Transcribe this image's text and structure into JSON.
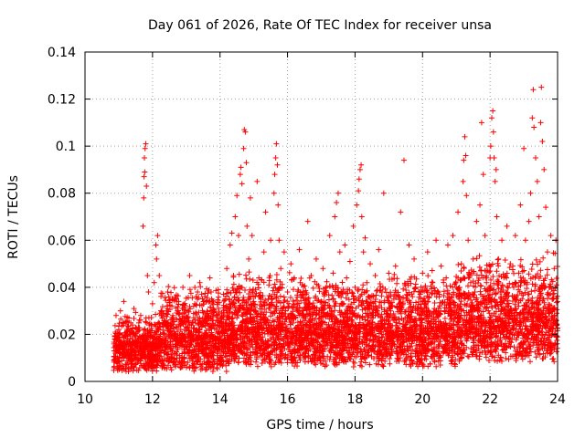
{
  "chart_data": {
    "type": "scatter",
    "title": "Day 061 of 2026, Rate Of TEC Index for receiver unsa",
    "xlabel": "GPS time / hours",
    "ylabel": "ROTI / TECUs",
    "xlim": [
      10,
      24
    ],
    "ylim": [
      0,
      0.14
    ],
    "xticks": [
      10,
      12,
      14,
      16,
      18,
      20,
      22,
      24
    ],
    "xtick_labels": [
      "10",
      "12",
      "14",
      "16",
      "18",
      "20",
      "22",
      "24"
    ],
    "yticks": [
      0,
      0.02,
      0.04,
      0.06,
      0.08,
      0.1,
      0.12,
      0.14
    ],
    "ytick_labels": [
      "0",
      "0.02",
      "0.04",
      "0.06",
      "0.08",
      "0.1",
      "0.12",
      "0.14"
    ],
    "grid": true,
    "marker": "+",
    "marker_color": "#ff0000",
    "series": [
      {
        "name": "ROTI",
        "points": [
          [
            10.9,
            0.012
          ],
          [
            10.92,
            0.028
          ],
          [
            10.95,
            0.018
          ],
          [
            11.0,
            0.022
          ],
          [
            11.02,
            0.01
          ],
          [
            11.05,
            0.03
          ],
          [
            11.1,
            0.015
          ],
          [
            11.12,
            0.025
          ],
          [
            11.15,
            0.034
          ],
          [
            11.2,
            0.019
          ],
          [
            11.25,
            0.012
          ],
          [
            11.3,
            0.027
          ],
          [
            11.35,
            0.02
          ],
          [
            11.4,
            0.009
          ],
          [
            11.45,
            0.031
          ],
          [
            11.5,
            0.016
          ],
          [
            11.55,
            0.022
          ],
          [
            11.6,
            0.013
          ],
          [
            11.65,
            0.028
          ],
          [
            11.7,
            0.018
          ],
          [
            11.72,
            0.066
          ],
          [
            11.74,
            0.078
          ],
          [
            11.75,
            0.087
          ],
          [
            11.76,
            0.095
          ],
          [
            11.77,
            0.089
          ],
          [
            11.78,
            0.099
          ],
          [
            11.8,
            0.101
          ],
          [
            11.82,
            0.083
          ],
          [
            11.85,
            0.045
          ],
          [
            11.88,
            0.038
          ],
          [
            11.9,
            0.024
          ],
          [
            11.95,
            0.012
          ],
          [
            12.0,
            0.033
          ],
          [
            12.05,
            0.042
          ],
          [
            12.1,
            0.058
          ],
          [
            12.12,
            0.052
          ],
          [
            12.15,
            0.062
          ],
          [
            12.2,
            0.045
          ],
          [
            12.25,
            0.03
          ],
          [
            12.3,
            0.018
          ],
          [
            12.35,
            0.006
          ],
          [
            12.4,
            0.025
          ],
          [
            12.45,
            0.038
          ],
          [
            12.5,
            0.02
          ],
          [
            12.55,
            0.014
          ],
          [
            12.6,
            0.028
          ],
          [
            12.7,
            0.035
          ],
          [
            12.75,
            0.019
          ],
          [
            12.8,
            0.011
          ],
          [
            12.85,
            0.026
          ],
          [
            12.9,
            0.04
          ],
          [
            12.95,
            0.022
          ],
          [
            13.0,
            0.015
          ],
          [
            13.05,
            0.03
          ],
          [
            13.1,
            0.045
          ],
          [
            13.15,
            0.021
          ],
          [
            13.2,
            0.01
          ],
          [
            13.25,
            0.033
          ],
          [
            13.3,
            0.018
          ],
          [
            13.35,
            0.027
          ],
          [
            13.4,
            0.042
          ],
          [
            13.45,
            0.016
          ],
          [
            13.5,
            0.024
          ],
          [
            13.55,
            0.036
          ],
          [
            13.6,
            0.012
          ],
          [
            13.65,
            0.028
          ],
          [
            13.7,
            0.044
          ],
          [
            13.75,
            0.02
          ],
          [
            13.8,
            0.031
          ],
          [
            13.85,
            0.015
          ],
          [
            13.9,
            0.026
          ],
          [
            13.95,
            0.039
          ],
          [
            14.0,
            0.019
          ],
          [
            14.05,
            0.029
          ],
          [
            14.1,
            0.012
          ],
          [
            14.15,
            0.035
          ],
          [
            14.2,
            0.048
          ],
          [
            14.25,
            0.022
          ],
          [
            14.3,
            0.058
          ],
          [
            14.35,
            0.063
          ],
          [
            14.4,
            0.045
          ],
          [
            14.45,
            0.07
          ],
          [
            14.5,
            0.079
          ],
          [
            14.55,
            0.062
          ],
          [
            14.6,
            0.088
          ],
          [
            14.62,
            0.091
          ],
          [
            14.65,
            0.084
          ],
          [
            14.7,
            0.099
          ],
          [
            14.72,
            0.107
          ],
          [
            14.75,
            0.106
          ],
          [
            14.78,
            0.093
          ],
          [
            14.8,
            0.066
          ],
          [
            14.85,
            0.052
          ],
          [
            14.9,
            0.078
          ],
          [
            14.95,
            0.062
          ],
          [
            15.0,
            0.034
          ],
          [
            15.05,
            0.021
          ],
          [
            15.1,
            0.085
          ],
          [
            15.15,
            0.044
          ],
          [
            15.2,
            0.018
          ],
          [
            15.25,
            0.032
          ],
          [
            15.3,
            0.055
          ],
          [
            15.35,
            0.072
          ],
          [
            15.4,
            0.026
          ],
          [
            15.45,
            0.041
          ],
          [
            15.5,
            0.06
          ],
          [
            15.55,
            0.035
          ],
          [
            15.6,
            0.08
          ],
          [
            15.62,
            0.088
          ],
          [
            15.65,
            0.095
          ],
          [
            15.67,
            0.101
          ],
          [
            15.7,
            0.092
          ],
          [
            15.72,
            0.075
          ],
          [
            15.75,
            0.06
          ],
          [
            15.8,
            0.048
          ],
          [
            15.85,
            0.03
          ],
          [
            15.9,
            0.055
          ],
          [
            15.95,
            0.022
          ],
          [
            16.0,
            0.038
          ],
          [
            16.05,
            0.016
          ],
          [
            16.1,
            0.05
          ],
          [
            16.15,
            0.027
          ],
          [
            16.2,
            0.044
          ],
          [
            16.25,
            0.019
          ],
          [
            16.3,
            0.033
          ],
          [
            16.35,
            0.056
          ],
          [
            16.4,
            0.024
          ],
          [
            16.45,
            0.014
          ],
          [
            16.5,
            0.037
          ],
          [
            16.55,
            0.021
          ],
          [
            16.6,
            0.068
          ],
          [
            16.65,
            0.029
          ],
          [
            16.7,
            0.045
          ],
          [
            16.75,
            0.017
          ],
          [
            16.8,
            0.031
          ],
          [
            16.85,
            0.052
          ],
          [
            16.9,
            0.022
          ],
          [
            16.95,
            0.012
          ],
          [
            17.0,
            0.034
          ],
          [
            17.05,
            0.048
          ],
          [
            17.1,
            0.025
          ],
          [
            17.15,
            0.04
          ],
          [
            17.2,
            0.018
          ],
          [
            17.25,
            0.062
          ],
          [
            17.3,
            0.03
          ],
          [
            17.35,
            0.046
          ],
          [
            17.4,
            0.07
          ],
          [
            17.45,
            0.076
          ],
          [
            17.5,
            0.08
          ],
          [
            17.55,
            0.055
          ],
          [
            17.6,
            0.038
          ],
          [
            17.65,
            0.026
          ],
          [
            17.7,
            0.058
          ],
          [
            17.75,
            0.044
          ],
          [
            17.8,
            0.032
          ],
          [
            17.85,
            0.051
          ],
          [
            17.9,
            0.024
          ],
          [
            17.95,
            0.066
          ],
          [
            18.0,
            0.04
          ],
          [
            18.05,
            0.075
          ],
          [
            18.1,
            0.081
          ],
          [
            18.12,
            0.086
          ],
          [
            18.15,
            0.09
          ],
          [
            18.18,
            0.092
          ],
          [
            18.2,
            0.07
          ],
          [
            18.25,
            0.055
          ],
          [
            18.3,
            0.061
          ],
          [
            18.35,
            0.042
          ],
          [
            18.4,
            0.028
          ],
          [
            18.45,
            0.05
          ],
          [
            18.5,
            0.036
          ],
          [
            18.55,
            0.019
          ],
          [
            18.6,
            0.045
          ],
          [
            18.65,
            0.03
          ],
          [
            18.7,
            0.056
          ],
          [
            18.75,
            0.022
          ],
          [
            18.8,
            0.038
          ],
          [
            18.85,
            0.08
          ],
          [
            18.9,
            0.014
          ],
          [
            18.95,
            0.03
          ],
          [
            19.0,
            0.046
          ],
          [
            19.05,
            0.024
          ],
          [
            19.1,
            0.012
          ],
          [
            19.15,
            0.035
          ],
          [
            19.2,
            0.049
          ],
          [
            19.25,
            0.02
          ],
          [
            19.3,
            0.032
          ],
          [
            19.35,
            0.072
          ],
          [
            19.4,
            0.015
          ],
          [
            19.45,
            0.094
          ],
          [
            19.5,
            0.041
          ],
          [
            19.55,
            0.027
          ],
          [
            19.6,
            0.058
          ],
          [
            19.65,
            0.018
          ],
          [
            19.7,
            0.036
          ],
          [
            19.75,
            0.052
          ],
          [
            19.8,
            0.026
          ],
          [
            19.85,
            0.012
          ],
          [
            19.9,
            0.038
          ],
          [
            19.95,
            0.024
          ],
          [
            20.0,
            0.046
          ],
          [
            20.05,
            0.019
          ],
          [
            20.1,
            0.033
          ],
          [
            20.15,
            0.055
          ],
          [
            20.2,
            0.028
          ],
          [
            20.25,
            0.016
          ],
          [
            20.3,
            0.042
          ],
          [
            20.35,
            0.031
          ],
          [
            20.4,
            0.06
          ],
          [
            20.45,
            0.022
          ],
          [
            20.5,
            0.037
          ],
          [
            20.55,
            0.049
          ],
          [
            20.6,
            0.014
          ],
          [
            20.65,
            0.03
          ],
          [
            20.7,
            0.044
          ],
          [
            20.75,
            0.058
          ],
          [
            20.8,
            0.024
          ],
          [
            20.85,
            0.036
          ],
          [
            20.9,
            0.062
          ],
          [
            20.95,
            0.019
          ],
          [
            21.0,
            0.04
          ],
          [
            21.05,
            0.072
          ],
          [
            21.1,
            0.028
          ],
          [
            21.15,
            0.05
          ],
          [
            21.2,
            0.085
          ],
          [
            21.22,
            0.094
          ],
          [
            21.25,
            0.104
          ],
          [
            21.28,
            0.096
          ],
          [
            21.3,
            0.079
          ],
          [
            21.35,
            0.06
          ],
          [
            21.4,
            0.045
          ],
          [
            21.45,
            0.03
          ],
          [
            21.5,
            0.052
          ],
          [
            21.55,
            0.038
          ],
          [
            21.6,
            0.068
          ],
          [
            21.65,
            0.025
          ],
          [
            21.7,
            0.075
          ],
          [
            21.75,
            0.11
          ],
          [
            21.8,
            0.088
          ],
          [
            21.85,
            0.062
          ],
          [
            21.9,
            0.044
          ],
          [
            21.95,
            0.03
          ],
          [
            22.0,
            0.095
          ],
          [
            22.02,
            0.1
          ],
          [
            22.05,
            0.112
          ],
          [
            22.08,
            0.115
          ],
          [
            22.1,
            0.106
          ],
          [
            22.12,
            0.095
          ],
          [
            22.15,
            0.085
          ],
          [
            22.18,
            0.09
          ],
          [
            22.2,
            0.07
          ],
          [
            22.25,
            0.052
          ],
          [
            22.3,
            0.038
          ],
          [
            22.35,
            0.06
          ],
          [
            22.4,
            0.024
          ],
          [
            22.45,
            0.045
          ],
          [
            22.5,
            0.066
          ],
          [
            22.55,
            0.032
          ],
          [
            22.6,
            0.05
          ],
          [
            22.65,
            0.018
          ],
          [
            22.7,
            0.04
          ],
          [
            22.75,
            0.062
          ],
          [
            22.8,
            0.028
          ],
          [
            22.85,
            0.046
          ],
          [
            22.9,
            0.075
          ],
          [
            22.95,
            0.035
          ],
          [
            23.0,
            0.099
          ],
          [
            23.05,
            0.06
          ],
          [
            23.1,
            0.042
          ],
          [
            23.15,
            0.068
          ],
          [
            23.2,
            0.08
          ],
          [
            23.25,
            0.112
          ],
          [
            23.28,
            0.124
          ],
          [
            23.3,
            0.108
          ],
          [
            23.35,
            0.095
          ],
          [
            23.4,
            0.085
          ],
          [
            23.45,
            0.07
          ],
          [
            23.5,
            0.11
          ],
          [
            23.52,
            0.125
          ],
          [
            23.55,
            0.102
          ],
          [
            23.6,
            0.09
          ],
          [
            23.65,
            0.074
          ],
          [
            23.7,
            0.055
          ],
          [
            23.75,
            0.04
          ],
          [
            23.8,
            0.062
          ],
          [
            23.85,
            0.03
          ],
          [
            23.9,
            0.048
          ],
          [
            23.95,
            0.06
          ],
          [
            24.0,
            0.034
          ]
        ]
      }
    ],
    "band": {
      "description": "dense background cloud of ROTI samples",
      "segments": [
        {
          "x_start": 10.85,
          "x_end": 12.2,
          "low": 0.004,
          "high": 0.03
        },
        {
          "x_start": 12.2,
          "x_end": 14.2,
          "low": 0.004,
          "high": 0.042
        },
        {
          "x_start": 14.2,
          "x_end": 16.5,
          "low": 0.006,
          "high": 0.048
        },
        {
          "x_start": 16.5,
          "x_end": 19.0,
          "low": 0.006,
          "high": 0.045
        },
        {
          "x_start": 19.0,
          "x_end": 21.0,
          "low": 0.006,
          "high": 0.048
        },
        {
          "x_start": 21.0,
          "x_end": 24.0,
          "low": 0.008,
          "high": 0.055
        }
      ]
    }
  }
}
